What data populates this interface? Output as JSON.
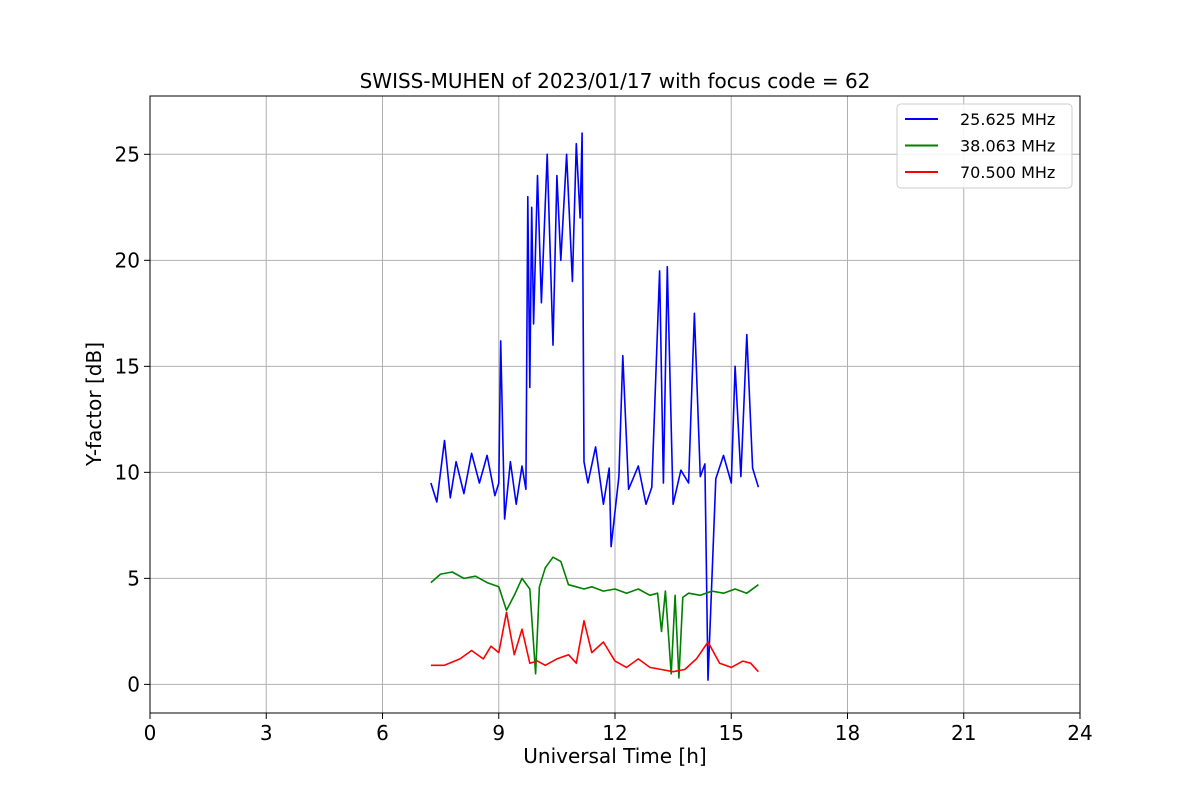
{
  "chart_data": {
    "type": "line",
    "title": "SWISS-MUHEN of 2023/01/17 with focus code = 62",
    "xlabel": "Universal Time [h]",
    "ylabel": "Y-factor [dB]",
    "xlim": [
      0,
      24
    ],
    "ylim": [
      -1.35,
      27.75
    ],
    "x_ticks": [
      0,
      3,
      6,
      9,
      12,
      15,
      18,
      21,
      24
    ],
    "x_tick_labels": [
      "0",
      "3",
      "6",
      "9",
      "12",
      "15",
      "18",
      "21",
      "24"
    ],
    "y_ticks": [
      0,
      5,
      10,
      15,
      20,
      25
    ],
    "y_tick_labels": [
      "0",
      "5",
      "10",
      "15",
      "20",
      "25"
    ],
    "grid": true,
    "legend_position": "top-right",
    "series": [
      {
        "name": "25.625 MHz",
        "color": "#0000ff",
        "x": [
          7.25,
          7.4,
          7.6,
          7.75,
          7.9,
          8.1,
          8.3,
          8.5,
          8.7,
          8.9,
          9.0,
          9.05,
          9.15,
          9.3,
          9.45,
          9.6,
          9.7,
          9.75,
          9.8,
          9.85,
          9.9,
          10.0,
          10.1,
          10.25,
          10.4,
          10.5,
          10.6,
          10.75,
          10.9,
          11.0,
          11.1,
          11.15,
          11.2,
          11.3,
          11.5,
          11.7,
          11.85,
          11.9,
          12.1,
          12.2,
          12.35,
          12.6,
          12.8,
          12.95,
          13.15,
          13.25,
          13.35,
          13.5,
          13.7,
          13.9,
          14.05,
          14.2,
          14.32,
          14.4,
          14.6,
          14.8,
          15.0,
          15.1,
          15.25,
          15.4,
          15.55,
          15.7
        ],
        "y": [
          9.5,
          8.6,
          11.5,
          8.8,
          10.5,
          9.0,
          10.9,
          9.5,
          10.8,
          8.9,
          9.5,
          16.2,
          7.8,
          10.5,
          8.5,
          10.3,
          9.2,
          23.0,
          14.0,
          22.5,
          17.0,
          24.0,
          18.0,
          25.0,
          16.0,
          24.0,
          20.0,
          25.0,
          19.0,
          25.5,
          22.0,
          26.0,
          10.5,
          9.5,
          11.2,
          8.5,
          10.2,
          6.5,
          9.8,
          15.5,
          9.2,
          10.3,
          8.5,
          9.3,
          19.5,
          9.5,
          19.7,
          8.5,
          10.1,
          9.5,
          17.5,
          9.8,
          10.4,
          0.2,
          9.7,
          10.8,
          9.5,
          15.0,
          9.8,
          16.5,
          10.2,
          9.3
        ]
      },
      {
        "name": "38.063 MHz",
        "color": "#008000",
        "x": [
          7.25,
          7.5,
          7.8,
          8.1,
          8.4,
          8.7,
          9.0,
          9.2,
          9.4,
          9.6,
          9.8,
          9.95,
          10.05,
          10.2,
          10.4,
          10.6,
          10.8,
          11.0,
          11.2,
          11.4,
          11.7,
          12.0,
          12.3,
          12.6,
          12.9,
          13.1,
          13.2,
          13.3,
          13.45,
          13.55,
          13.65,
          13.75,
          13.9,
          14.2,
          14.5,
          14.8,
          15.1,
          15.4,
          15.7
        ],
        "y": [
          4.8,
          5.2,
          5.3,
          5.0,
          5.1,
          4.8,
          4.6,
          3.5,
          4.2,
          5.0,
          4.5,
          0.5,
          4.6,
          5.5,
          6.0,
          5.8,
          4.7,
          4.6,
          4.5,
          4.6,
          4.4,
          4.5,
          4.3,
          4.5,
          4.2,
          4.3,
          2.5,
          4.4,
          0.5,
          4.2,
          0.3,
          4.1,
          4.3,
          4.2,
          4.4,
          4.3,
          4.5,
          4.3,
          4.7
        ]
      },
      {
        "name": "70.500 MHz",
        "color": "#ff0000",
        "x": [
          7.25,
          7.6,
          8.0,
          8.3,
          8.6,
          8.8,
          9.0,
          9.2,
          9.4,
          9.6,
          9.8,
          10.0,
          10.2,
          10.5,
          10.8,
          11.0,
          11.2,
          11.4,
          11.7,
          12.0,
          12.3,
          12.6,
          12.9,
          13.2,
          13.5,
          13.8,
          14.1,
          14.4,
          14.7,
          15.0,
          15.3,
          15.5,
          15.7
        ],
        "y": [
          0.9,
          0.9,
          1.2,
          1.6,
          1.2,
          1.8,
          1.5,
          3.4,
          1.4,
          2.6,
          1.0,
          1.1,
          0.9,
          1.2,
          1.4,
          1.0,
          3.0,
          1.5,
          2.0,
          1.1,
          0.8,
          1.2,
          0.8,
          0.7,
          0.6,
          0.7,
          1.2,
          2.0,
          1.0,
          0.8,
          1.1,
          1.0,
          0.6
        ]
      }
    ]
  }
}
